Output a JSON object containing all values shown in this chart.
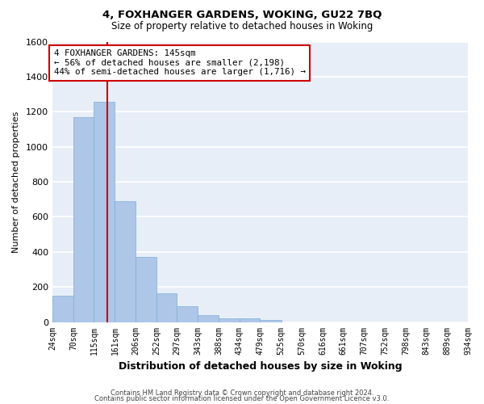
{
  "title": "4, FOXHANGER GARDENS, WOKING, GU22 7BQ",
  "subtitle": "Size of property relative to detached houses in Woking",
  "xlabel": "Distribution of detached houses by size in Woking",
  "ylabel": "Number of detached properties",
  "bar_color": "#aec6e8",
  "bar_edge_color": "#7aafd4",
  "background_color": "#e8eef7",
  "grid_color": "#ffffff",
  "bins": [
    "24sqm",
    "70sqm",
    "115sqm",
    "161sqm",
    "206sqm",
    "252sqm",
    "297sqm",
    "343sqm",
    "388sqm",
    "434sqm",
    "479sqm",
    "525sqm",
    "570sqm",
    "616sqm",
    "661sqm",
    "707sqm",
    "752sqm",
    "798sqm",
    "843sqm",
    "889sqm",
    "934sqm"
  ],
  "values": [
    148,
    1170,
    1255,
    688,
    370,
    165,
    92,
    38,
    22,
    20,
    12,
    0,
    0,
    0,
    0,
    0,
    0,
    0,
    0,
    0
  ],
  "bin_edges": [
    24,
    70,
    115,
    161,
    206,
    252,
    297,
    343,
    388,
    434,
    479,
    525,
    570,
    616,
    661,
    707,
    752,
    798,
    843,
    889,
    934
  ],
  "ylim": [
    0,
    1600
  ],
  "yticks": [
    0,
    200,
    400,
    600,
    800,
    1000,
    1200,
    1400,
    1600
  ],
  "vline_x": 145,
  "vline_color": "#cc0000",
  "annotation_text_line1": "4 FOXHANGER GARDENS: 145sqm",
  "annotation_text_line2": "← 56% of detached houses are smaller (2,198)",
  "annotation_text_line3": "44% of semi-detached houses are larger (1,716) →",
  "annotation_box_color": "#cc0000",
  "footer_line1": "Contains HM Land Registry data © Crown copyright and database right 2024.",
  "footer_line2": "Contains public sector information licensed under the Open Government Licence v3.0."
}
